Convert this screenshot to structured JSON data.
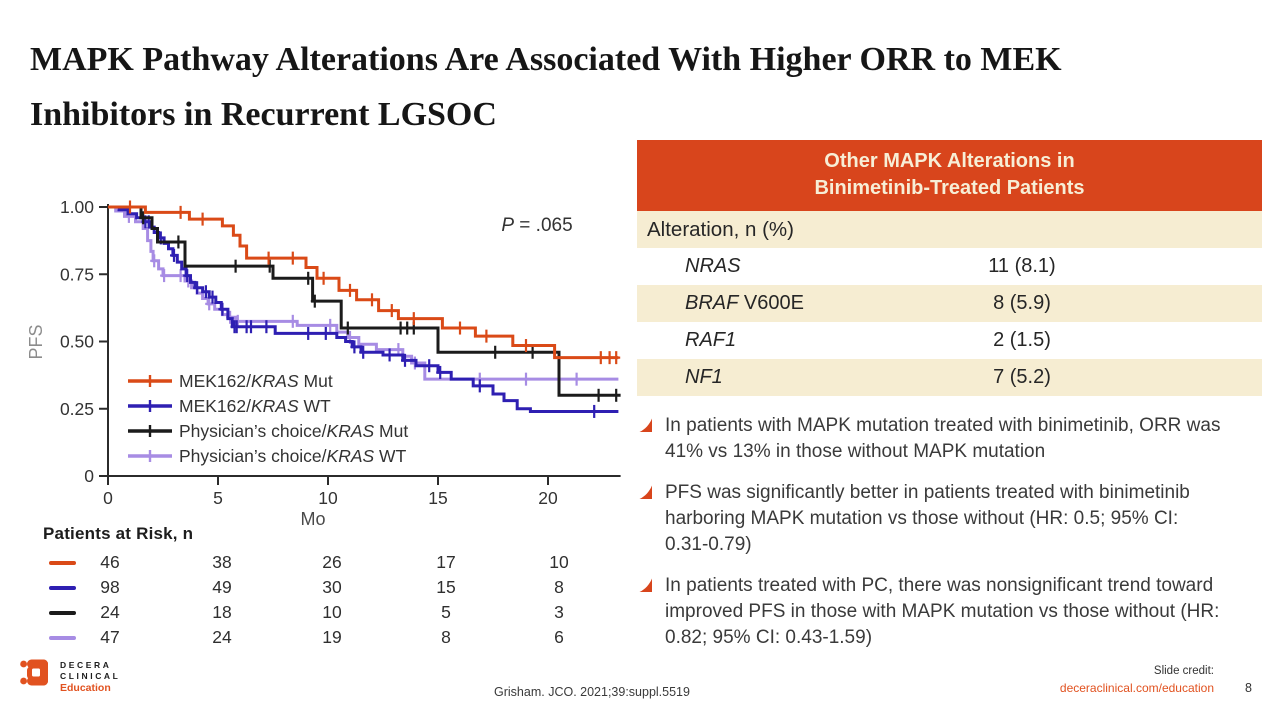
{
  "slide": {
    "title": "MAPK Pathway Alterations Are Associated With Higher ORR to MEK Inhibitors in Recurrent LGSOC",
    "citation": "Grisham. JCO. 2021;39:suppl.5519",
    "credit_label": "Slide credit:",
    "credit_link": "deceraclinical.com/education",
    "page_number": "8",
    "logo": {
      "line1": "DECERA",
      "line2": "CLINICAL",
      "line3": "Education"
    }
  },
  "colors": {
    "accent": "#D8451C",
    "cream": "#F6EDD2",
    "link_orange": "#E15220",
    "curve_orange": "#DA4A17",
    "curve_navy": "#2E1FB2",
    "curve_black": "#1B1B1B",
    "curve_purple": "#A78CE4",
    "text_dark": "#3A3A3A",
    "axis_gray": "#8C8C8C"
  },
  "table": {
    "header": "Other MAPK Alterations in Binimetinib-Treated Patients",
    "subheader": "Alteration, n (%)",
    "rows": [
      {
        "gene": "NRAS",
        "suffix": "",
        "value": "11 (8.1)"
      },
      {
        "gene": "BRAF",
        "suffix": " V600E",
        "value": "8 (5.9)"
      },
      {
        "gene": "RAF1",
        "suffix": "",
        "value": "2 (1.5)"
      },
      {
        "gene": "NF1",
        "suffix": "",
        "value": "7 (5.2)"
      }
    ]
  },
  "bullets": [
    "In patients with MAPK mutation treated with binimetinib, ORR was 41% vs 13% in those without MAPK mutation",
    "PFS was significantly better in patients treated with binimetinib harboring MAPK mutation vs those without (HR: 0.5; 95% CI: 0.31-0.79)",
    "In patients treated with PC, there was nonsignificant trend toward improved PFS in those with MAPK mutation vs those without (HR: 0.82; 95% CI: 0.43-1.59)"
  ],
  "chart_data": {
    "type": "line",
    "subtype": "kaplan-meier-step",
    "ylabel": "PFS",
    "xlabel": "Mo",
    "p_value_label": "P",
    "p_value_rest": " = .065",
    "xlim": [
      0,
      23.3
    ],
    "ylim": [
      0,
      1.0
    ],
    "xticks": [
      0,
      5,
      10,
      15,
      20
    ],
    "yticks": [
      0,
      0.25,
      0.5,
      0.75,
      1.0
    ],
    "ytick_labels": [
      "0",
      "0.25",
      "0.50",
      "0.75",
      "1.00"
    ],
    "grid": false,
    "legend_position": "inside-bottom-left",
    "series": [
      {
        "name": "MEK162/KRAS Mut",
        "color": "#DA4A17",
        "end": 23.2,
        "steps": [
          [
            0,
            1.0
          ],
          [
            1.7,
            0.98
          ],
          [
            3.7,
            0.955
          ],
          [
            5.2,
            0.93
          ],
          [
            5.7,
            0.895
          ],
          [
            6.0,
            0.855
          ],
          [
            6.3,
            0.81
          ],
          [
            9.0,
            0.775
          ],
          [
            9.5,
            0.735
          ],
          [
            10.5,
            0.69
          ],
          [
            11.3,
            0.655
          ],
          [
            12.3,
            0.615
          ],
          [
            13.2,
            0.585
          ],
          [
            15.2,
            0.55
          ],
          [
            16.7,
            0.52
          ],
          [
            18.4,
            0.485
          ],
          [
            20.3,
            0.44
          ]
        ],
        "censors": [
          1.0,
          3.3,
          4.3,
          7.3,
          8.4,
          9.8,
          11.0,
          12.0,
          12.9,
          13.9,
          16.0,
          17.2,
          19.0,
          22.4,
          22.8,
          23.1
        ]
      },
      {
        "name": "MEK162/KRAS WT",
        "color": "#2E1FB2",
        "end": 23.2,
        "steps": [
          [
            0,
            1.0
          ],
          [
            0.5,
            0.99
          ],
          [
            0.9,
            0.975
          ],
          [
            1.3,
            0.96
          ],
          [
            1.6,
            0.945
          ],
          [
            1.9,
            0.925
          ],
          [
            2.1,
            0.905
          ],
          [
            2.3,
            0.885
          ],
          [
            2.55,
            0.865
          ],
          [
            2.75,
            0.845
          ],
          [
            2.95,
            0.82
          ],
          [
            3.15,
            0.795
          ],
          [
            3.35,
            0.77
          ],
          [
            3.55,
            0.745
          ],
          [
            3.75,
            0.72
          ],
          [
            3.95,
            0.7
          ],
          [
            4.3,
            0.685
          ],
          [
            4.6,
            0.665
          ],
          [
            4.9,
            0.645
          ],
          [
            5.15,
            0.62
          ],
          [
            5.45,
            0.585
          ],
          [
            5.65,
            0.555
          ],
          [
            7.6,
            0.53
          ],
          [
            10.4,
            0.515
          ],
          [
            10.8,
            0.5
          ],
          [
            11.1,
            0.48
          ],
          [
            11.5,
            0.46
          ],
          [
            12.5,
            0.45
          ],
          [
            13.4,
            0.43
          ],
          [
            14.0,
            0.41
          ],
          [
            15.0,
            0.385
          ],
          [
            15.6,
            0.36
          ],
          [
            16.6,
            0.335
          ],
          [
            17.5,
            0.305
          ],
          [
            18.0,
            0.28
          ],
          [
            18.6,
            0.25
          ],
          [
            19.2,
            0.24
          ]
        ],
        "censors": [
          1.7,
          1.85,
          2.4,
          3.0,
          3.6,
          4.05,
          4.45,
          4.75,
          5.2,
          5.75,
          5.85,
          6.3,
          6.5,
          7.2,
          9.1,
          9.9,
          11.2,
          11.6,
          12.8,
          13.5,
          14.6,
          15.1,
          16.9,
          22.1
        ]
      },
      {
        "name": "Physician’s choice/KRAS Mut",
        "color": "#1B1B1B",
        "end": 23.3,
        "steps": [
          [
            0,
            1.0
          ],
          [
            1.5,
            0.96
          ],
          [
            2.0,
            0.92
          ],
          [
            2.25,
            0.87
          ],
          [
            3.5,
            0.78
          ],
          [
            7.5,
            0.735
          ],
          [
            9.3,
            0.65
          ],
          [
            10.6,
            0.55
          ],
          [
            15.0,
            0.46
          ],
          [
            20.5,
            0.3
          ]
        ],
        "censors": [
          1.6,
          3.2,
          5.8,
          7.35,
          9.1,
          9.4,
          10.9,
          13.3,
          13.6,
          13.9,
          17.6,
          19.3,
          22.3,
          23.1
        ]
      },
      {
        "name": "Physician’s choice/KRAS WT",
        "color": "#A78CE4",
        "end": 23.2,
        "steps": [
          [
            0,
            1.0
          ],
          [
            0.35,
            0.985
          ],
          [
            0.75,
            0.965
          ],
          [
            1.25,
            0.945
          ],
          [
            1.6,
            0.92
          ],
          [
            1.8,
            0.875
          ],
          [
            1.95,
            0.835
          ],
          [
            2.05,
            0.8
          ],
          [
            2.3,
            0.77
          ],
          [
            2.5,
            0.745
          ],
          [
            3.5,
            0.725
          ],
          [
            3.8,
            0.7
          ],
          [
            4.05,
            0.68
          ],
          [
            4.3,
            0.66
          ],
          [
            4.55,
            0.64
          ],
          [
            4.85,
            0.62
          ],
          [
            5.2,
            0.6
          ],
          [
            5.5,
            0.59
          ],
          [
            5.8,
            0.575
          ],
          [
            8.6,
            0.56
          ],
          [
            10.4,
            0.535
          ],
          [
            10.9,
            0.515
          ],
          [
            11.4,
            0.49
          ],
          [
            12.2,
            0.47
          ],
          [
            13.4,
            0.445
          ],
          [
            13.8,
            0.42
          ],
          [
            14.4,
            0.36
          ]
        ],
        "censors": [
          0.95,
          2.1,
          2.55,
          3.3,
          3.65,
          4.6,
          5.55,
          5.9,
          8.4,
          10.1,
          11.0,
          13.2,
          13.95,
          16.9,
          19.0,
          21.3
        ]
      }
    ],
    "at_risk": {
      "label": "Patients at Risk, n",
      "times": [
        0,
        5,
        10,
        15,
        20
      ],
      "rows": [
        {
          "series": "MEK162/KRAS Mut",
          "color": "#DA4A17",
          "counts": [
            46,
            38,
            26,
            17,
            10
          ]
        },
        {
          "series": "MEK162/KRAS WT",
          "color": "#2E1FB2",
          "counts": [
            98,
            49,
            30,
            15,
            8
          ]
        },
        {
          "series": "Physician’s choice/KRAS Mut",
          "color": "#1B1B1B",
          "counts": [
            24,
            18,
            10,
            5,
            3
          ]
        },
        {
          "series": "Physician’s choice/KRAS WT",
          "color": "#A78CE4",
          "counts": [
            47,
            24,
            19,
            8,
            6
          ]
        }
      ]
    }
  }
}
